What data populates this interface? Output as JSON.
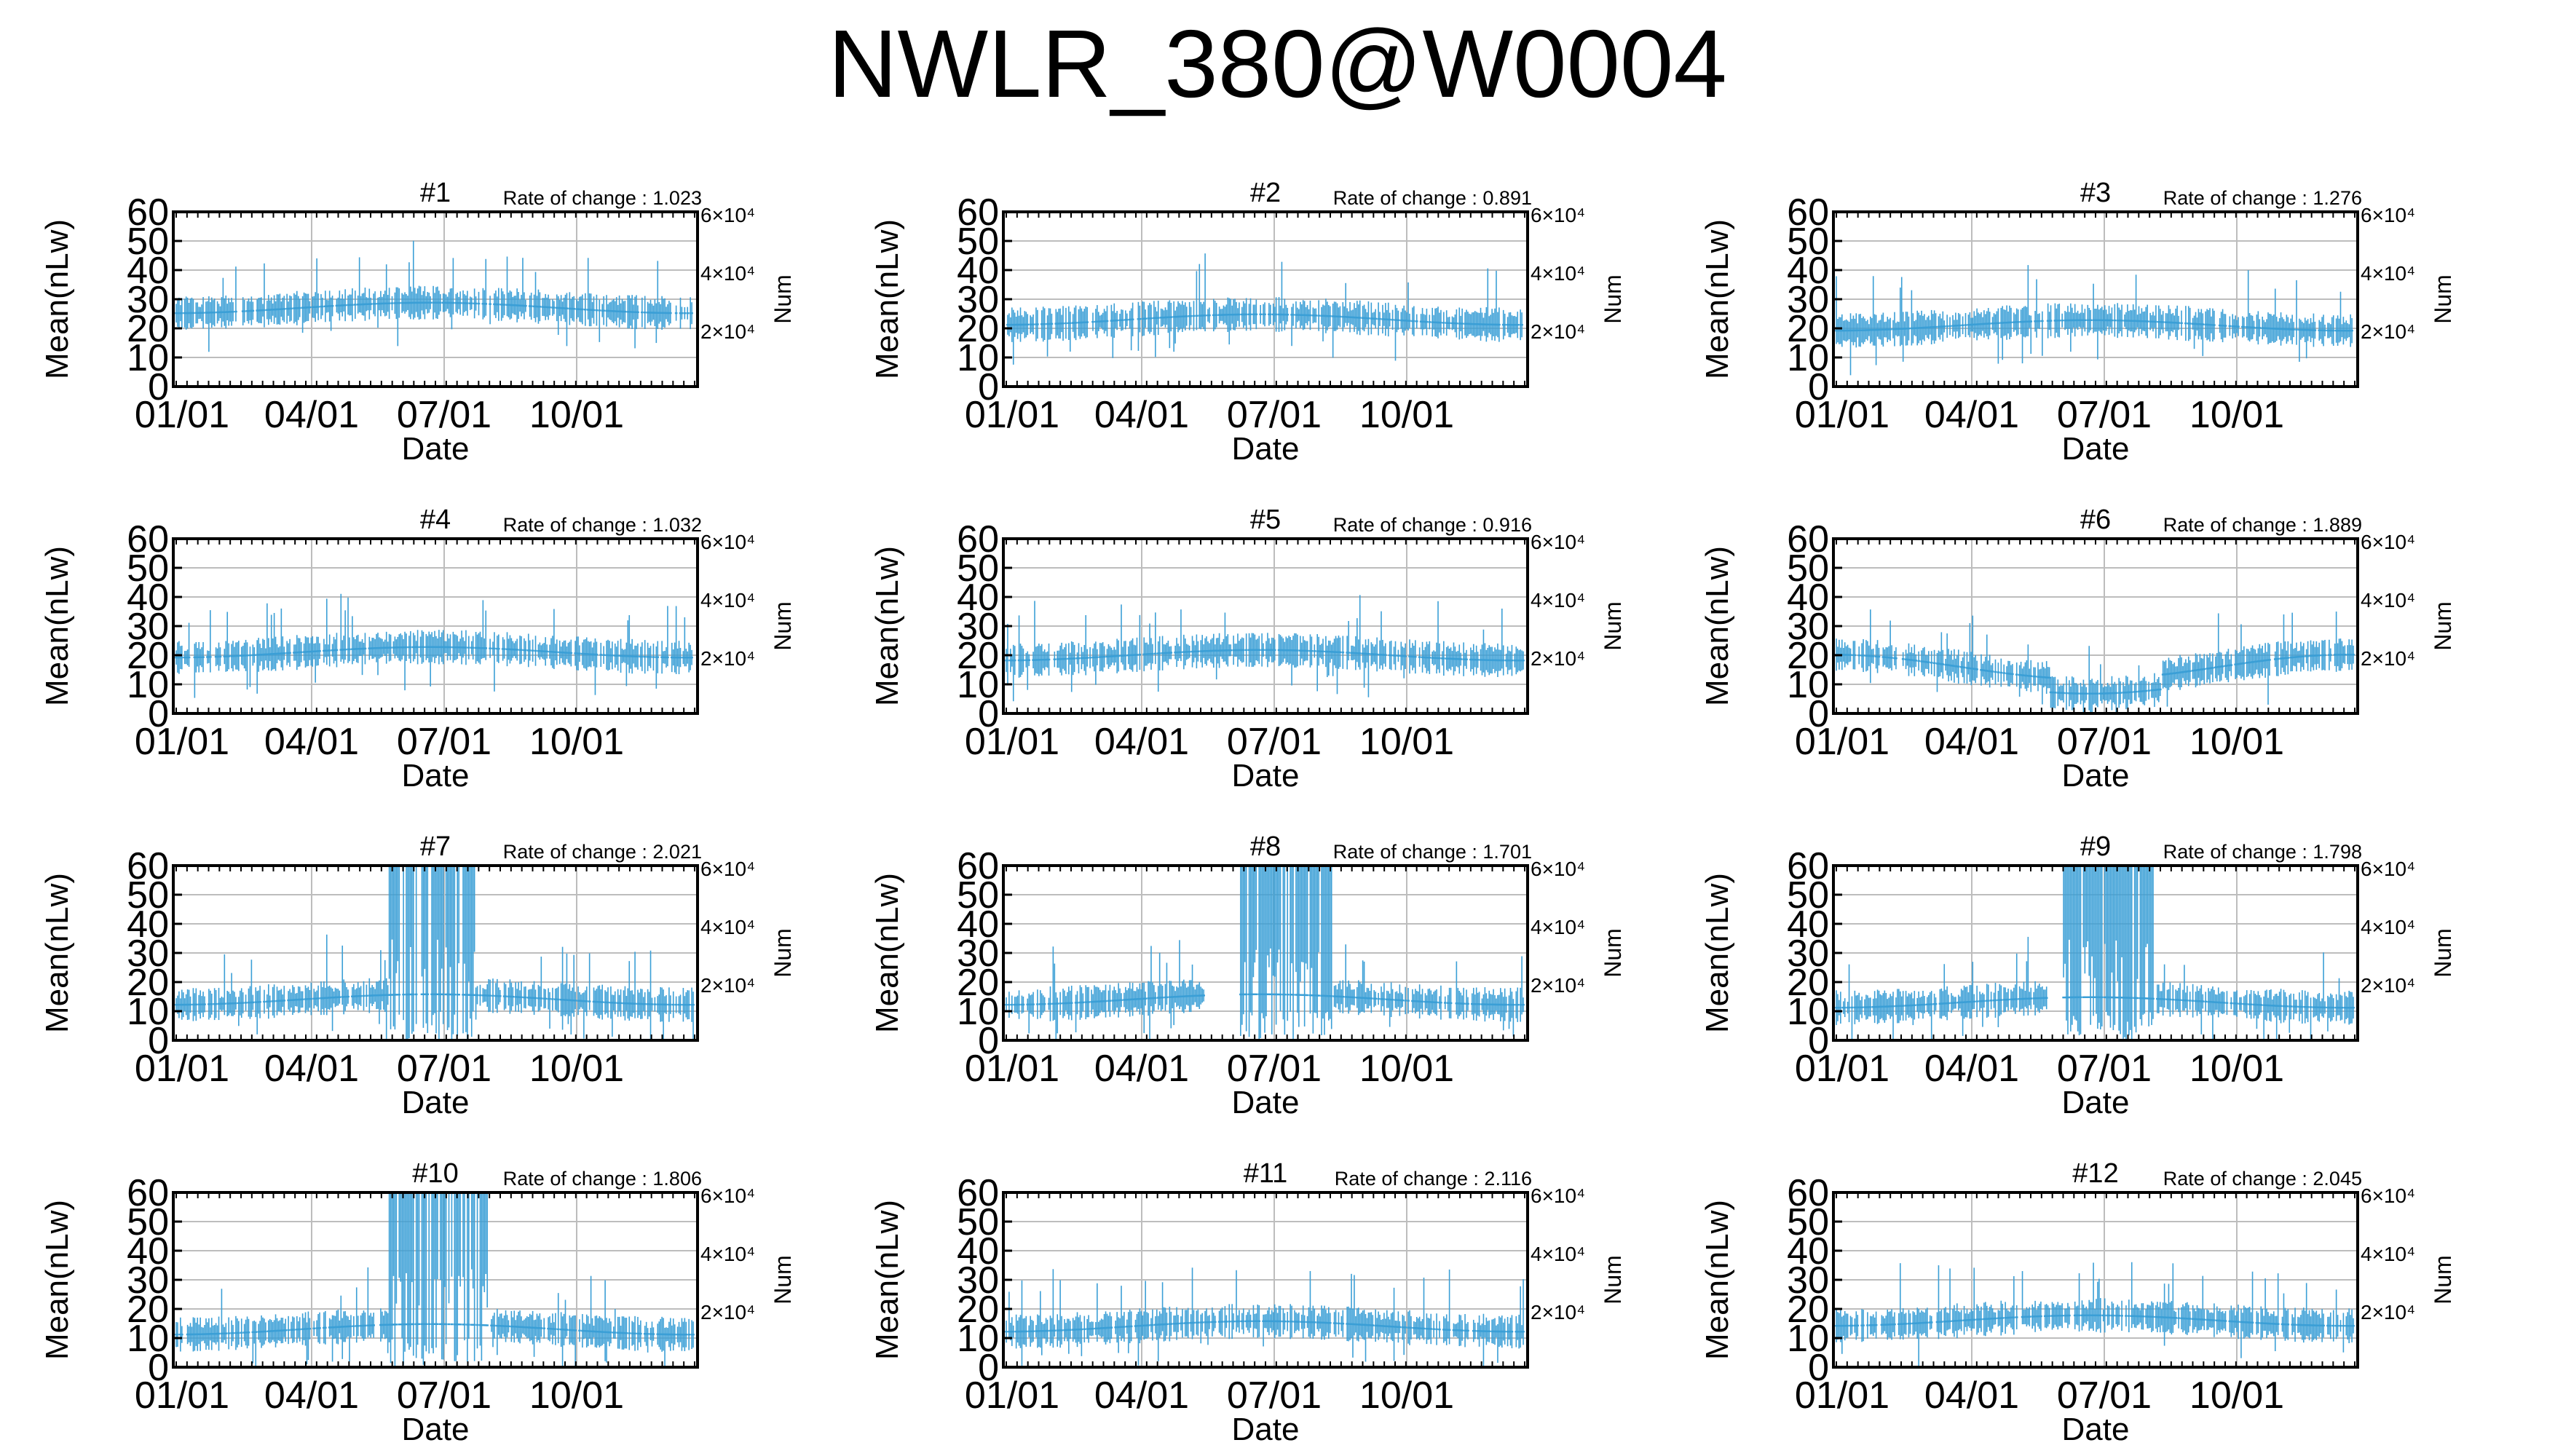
{
  "title": "NWLR_380@W0004",
  "series_color": "#3b9fd6",
  "chart_data": [
    {
      "type": "scatter",
      "title": "#1",
      "rate_label": "Rate of change : 1.023",
      "xlabel": "Date",
      "ylabel": "Mean(nLw)",
      "ylabel_right": "Num",
      "ylim": [
        0,
        60
      ],
      "yticks": [
        0,
        10,
        20,
        30,
        40,
        50,
        60
      ],
      "xticks": [
        "01/01",
        "04/01",
        "07/01",
        "10/01"
      ],
      "y2_ticks": [
        "6×10⁴",
        "4×10⁴",
        "2×10⁴"
      ],
      "grid": true,
      "profile": "normal",
      "base": 27
    },
    {
      "type": "scatter",
      "title": "#2",
      "rate_label": "Rate of change : 0.891",
      "xlabel": "Date",
      "ylabel": "Mean(nLw)",
      "ylabel_right": "Num",
      "ylim": [
        0,
        60
      ],
      "yticks": [
        0,
        10,
        20,
        30,
        40,
        50,
        60
      ],
      "xticks": [
        "01/01",
        "04/01",
        "07/01",
        "10/01"
      ],
      "y2_ticks": [
        "6×10⁴",
        "4×10⁴",
        "2×10⁴"
      ],
      "grid": true,
      "profile": "normal",
      "base": 23
    },
    {
      "type": "scatter",
      "title": "#3",
      "rate_label": "Rate of change : 1.276",
      "xlabel": "Date",
      "ylabel": "Mean(nLw)",
      "ylabel_right": "Num",
      "ylim": [
        0,
        60
      ],
      "yticks": [
        0,
        10,
        20,
        30,
        40,
        50,
        60
      ],
      "xticks": [
        "01/01",
        "04/01",
        "07/01",
        "10/01"
      ],
      "y2_ticks": [
        "6×10⁴",
        "4×10⁴",
        "2×10⁴"
      ],
      "grid": true,
      "profile": "normal",
      "base": 21
    },
    {
      "type": "scatter",
      "title": "#4",
      "rate_label": "Rate of change : 1.032",
      "xlabel": "Date",
      "ylabel": "Mean(nLw)",
      "ylabel_right": "Num",
      "ylim": [
        0,
        60
      ],
      "yticks": [
        0,
        10,
        20,
        30,
        40,
        50,
        60
      ],
      "xticks": [
        "01/01",
        "04/01",
        "07/01",
        "10/01"
      ],
      "y2_ticks": [
        "6×10⁴",
        "4×10⁴",
        "2×10⁴"
      ],
      "grid": true,
      "profile": "normal",
      "base": 21
    },
    {
      "type": "scatter",
      "title": "#5",
      "rate_label": "Rate of change : 0.916",
      "xlabel": "Date",
      "ylabel": "Mean(nLw)",
      "ylabel_right": "Num",
      "ylim": [
        0,
        60
      ],
      "yticks": [
        0,
        10,
        20,
        30,
        40,
        50,
        60
      ],
      "xticks": [
        "01/01",
        "04/01",
        "07/01",
        "10/01"
      ],
      "y2_ticks": [
        "6×10⁴",
        "4×10⁴",
        "2×10⁴"
      ],
      "grid": true,
      "profile": "normal",
      "base": 20
    },
    {
      "type": "scatter",
      "title": "#6",
      "rate_label": "Rate of change : 1.889",
      "xlabel": "Date",
      "ylabel": "Mean(nLw)",
      "ylabel_right": "Num",
      "ylim": [
        0,
        60
      ],
      "yticks": [
        0,
        10,
        20,
        30,
        40,
        50,
        60
      ],
      "xticks": [
        "01/01",
        "04/01",
        "07/01",
        "10/01"
      ],
      "y2_ticks": [
        "6×10⁴",
        "4×10⁴",
        "2×10⁴"
      ],
      "grid": true,
      "profile": "dip",
      "base": 16
    },
    {
      "type": "scatter",
      "title": "#7",
      "rate_label": "Rate of change : 2.021",
      "xlabel": "Date",
      "ylabel": "Mean(nLw)",
      "ylabel_right": "Num",
      "ylim": [
        0,
        60
      ],
      "yticks": [
        0,
        10,
        20,
        30,
        40,
        50,
        60
      ],
      "xticks": [
        "01/01",
        "04/01",
        "07/01",
        "10/01"
      ],
      "y2_ticks": [
        "6×10⁴",
        "4×10⁴",
        "2×10⁴"
      ],
      "grid": true,
      "profile": "spike",
      "spike_days": [
        150,
        210
      ],
      "base": 14
    },
    {
      "type": "scatter",
      "title": "#8",
      "rate_label": "Rate of change : 1.701",
      "xlabel": "Date",
      "ylabel": "Mean(nLw)",
      "ylabel_right": "Num",
      "ylim": [
        0,
        60
      ],
      "yticks": [
        0,
        10,
        20,
        30,
        40,
        50,
        60
      ],
      "xticks": [
        "01/01",
        "04/01",
        "07/01",
        "10/01"
      ],
      "y2_ticks": [
        "6×10⁴",
        "4×10⁴",
        "2×10⁴"
      ],
      "grid": true,
      "profile": "spike",
      "spike_days": [
        165,
        230
      ],
      "gap_days": [
        140,
        165
      ],
      "base": 14
    },
    {
      "type": "scatter",
      "title": "#9",
      "rate_label": "Rate of change : 1.798",
      "xlabel": "Date",
      "ylabel": "Mean(nLw)",
      "ylabel_right": "Num",
      "ylim": [
        0,
        60
      ],
      "yticks": [
        0,
        10,
        20,
        30,
        40,
        50,
        60
      ],
      "xticks": [
        "01/01",
        "04/01",
        "07/01",
        "10/01"
      ],
      "y2_ticks": [
        "6×10⁴",
        "4×10⁴",
        "2×10⁴"
      ],
      "grid": true,
      "profile": "spike",
      "spike_days": [
        160,
        225
      ],
      "gap_days": [
        150,
        160
      ],
      "base": 13
    },
    {
      "type": "scatter",
      "title": "#10",
      "rate_label": "Rate of change : 1.806",
      "xlabel": "Date",
      "ylabel": "Mean(nLw)",
      "ylabel_right": "Num",
      "ylim": [
        0,
        60
      ],
      "yticks": [
        0,
        10,
        20,
        30,
        40,
        50,
        60
      ],
      "xticks": [
        "01/01",
        "04/01",
        "07/01",
        "10/01"
      ],
      "y2_ticks": [
        "6×10⁴",
        "4×10⁴",
        "2×10⁴"
      ],
      "grid": true,
      "profile": "spike",
      "spike_days": [
        150,
        220
      ],
      "base": 13
    },
    {
      "type": "scatter",
      "title": "#11",
      "rate_label": "Rate of change : 2.116",
      "xlabel": "Date",
      "ylabel": "Mean(nLw)",
      "ylabel_right": "Num",
      "ylim": [
        0,
        60
      ],
      "yticks": [
        0,
        10,
        20,
        30,
        40,
        50,
        60
      ],
      "xticks": [
        "01/01",
        "04/01",
        "07/01",
        "10/01"
      ],
      "y2_ticks": [
        "6×10⁴",
        "4×10⁴",
        "2×10⁴"
      ],
      "grid": true,
      "profile": "normal",
      "base": 14
    },
    {
      "type": "scatter",
      "title": "#12",
      "rate_label": "Rate of change : 2.045",
      "xlabel": "Date",
      "ylabel": "Mean(nLw)",
      "ylabel_right": "Num",
      "ylim": [
        0,
        60
      ],
      "yticks": [
        0,
        10,
        20,
        30,
        40,
        50,
        60
      ],
      "xticks": [
        "01/01",
        "04/01",
        "07/01",
        "10/01"
      ],
      "y2_ticks": [
        "6×10⁴",
        "4×10⁴",
        "2×10⁴"
      ],
      "grid": true,
      "profile": "normal",
      "base": 16
    }
  ]
}
